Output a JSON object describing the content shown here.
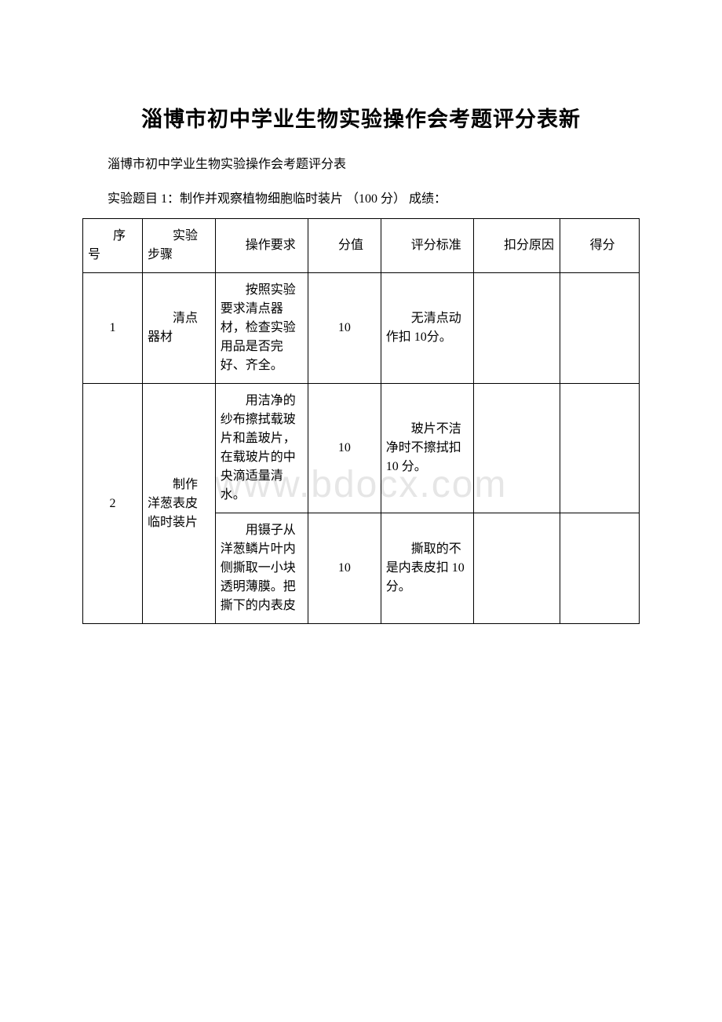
{
  "title": "淄博市初中学业生物实验操作会考题评分表新",
  "subtitle": "淄博市初中学业生物实验操作会考题评分表",
  "exam_line": "实验题目 1：制作并观察植物细胞临时装片 （100 分） 成绩：",
  "watermark": "www.bdocx.com",
  "header": {
    "seq": "序号",
    "step": "实验步骤",
    "req": "操作要求",
    "score": "分值",
    "std": "评分标准",
    "deduct": "扣分原因",
    "get": "得分"
  },
  "rows": [
    {
      "seq": "1",
      "step": "清点器材",
      "req": "按照实验要求清点器材，检查实验用品是否完好、齐全。",
      "score": "10",
      "std": "无清点动作扣 10分。"
    },
    {
      "seq": "2",
      "step": "制作洋葱表皮临时装片",
      "sub": [
        {
          "req": "用洁净的纱布擦拭载玻片和盖玻片，在载玻片的中央滴适量清水。",
          "score": "10",
          "std": "玻片不洁净时不擦拭扣10 分。"
        },
        {
          "req": "用镊子从洋葱鳞片叶内侧撕取一小块透明薄膜。把撕下的内表皮",
          "score": "10",
          "std": "撕取的不是内表皮扣 10分。"
        }
      ]
    }
  ]
}
